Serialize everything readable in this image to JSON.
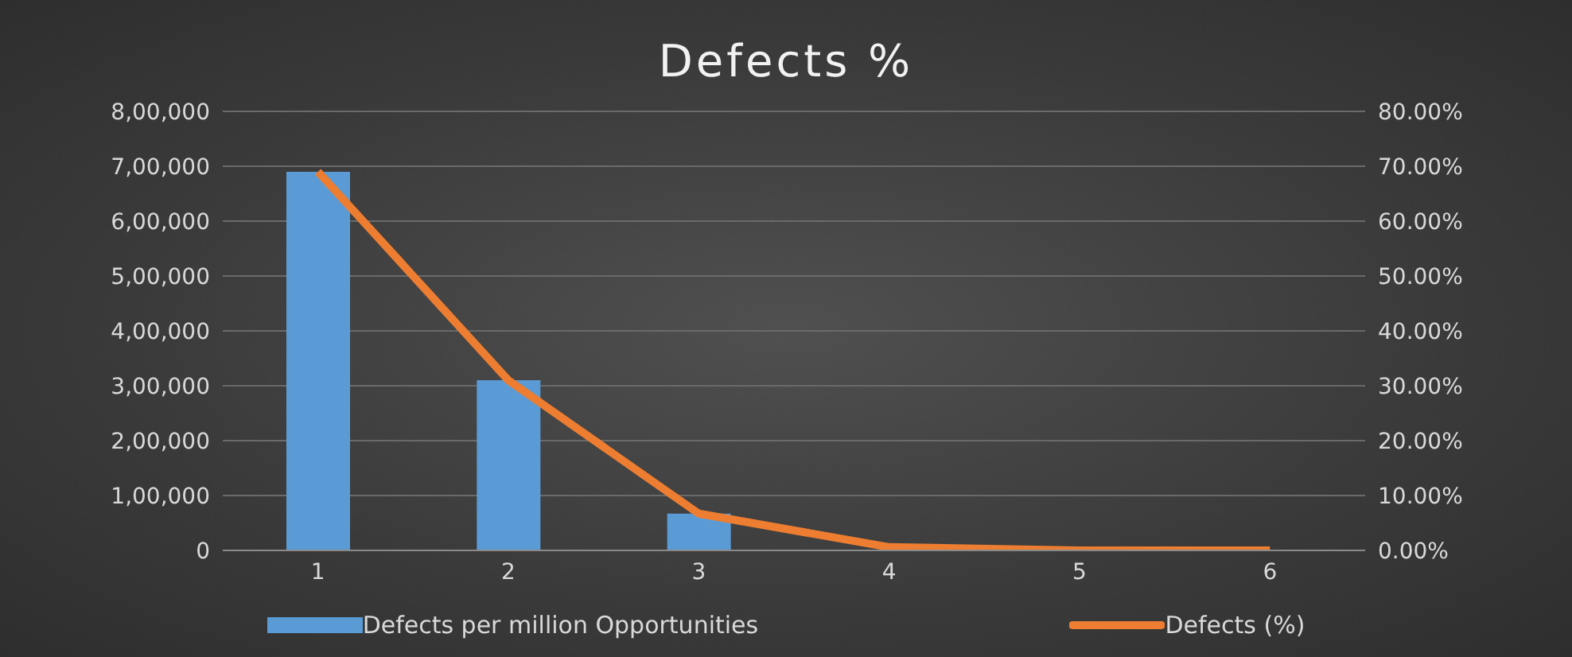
{
  "chart_data": {
    "type": "bar",
    "title": "Defects %",
    "categories": [
      "1",
      "2",
      "3",
      "4",
      "5",
      "6"
    ],
    "series": [
      {
        "name": "Defects per million Opportunities",
        "color": "#5b9bd5",
        "values": [
          690000,
          310000,
          67000,
          null,
          0,
          0
        ]
      },
      {
        "name": "Defects (%)",
        "type": "line",
        "axis": "y2",
        "color": "#ed7d31",
        "values": [
          69,
          31,
          6.7,
          0.6,
          0,
          0
        ]
      }
    ],
    "ylim": [
      0,
      800000
    ],
    "yticks": [
      {
        "value": 0,
        "label": "0"
      },
      {
        "value": 100000,
        "label": "1,00,000"
      },
      {
        "value": 200000,
        "label": "2,00,000"
      },
      {
        "value": 300000,
        "label": "3,00,000"
      },
      {
        "value": 400000,
        "label": "4,00,000"
      },
      {
        "value": 500000,
        "label": "5,00,000"
      },
      {
        "value": 600000,
        "label": "6,00,000"
      },
      {
        "value": 700000,
        "label": "7,00,000"
      },
      {
        "value": 800000,
        "label": "8,00,000"
      }
    ],
    "y2lim": [
      0,
      80
    ],
    "y2ticks": [
      {
        "value": 0,
        "label": "0.00%"
      },
      {
        "value": 10,
        "label": "10.00%"
      },
      {
        "value": 20,
        "label": "20.00%"
      },
      {
        "value": 30,
        "label": "30.00%"
      },
      {
        "value": 40,
        "label": "40.00%"
      },
      {
        "value": 50,
        "label": "50.00%"
      },
      {
        "value": 60,
        "label": "60.00%"
      },
      {
        "value": 70,
        "label": "70.00%"
      },
      {
        "value": 80,
        "label": "80.00%"
      }
    ],
    "grid": "y",
    "legend": "bottom",
    "marker": "none"
  }
}
